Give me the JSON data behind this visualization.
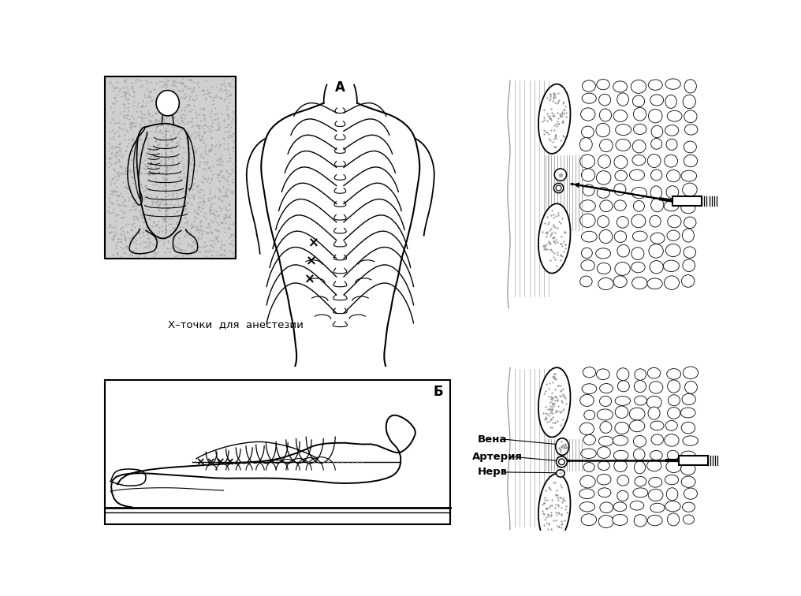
{
  "white": "#ffffff",
  "black": "#000000",
  "gray_light": "#e8e8e8",
  "gray_stipple": "#cccccc",
  "label_A": "А",
  "label_B": "Б",
  "text_x_points": "Х–точки  для  анестезии",
  "label_vena": "Вена",
  "label_arteriya": "Артерия",
  "label_nerv": "Нерв",
  "fig_width": 10.16,
  "fig_height": 7.56,
  "dpi": 100
}
